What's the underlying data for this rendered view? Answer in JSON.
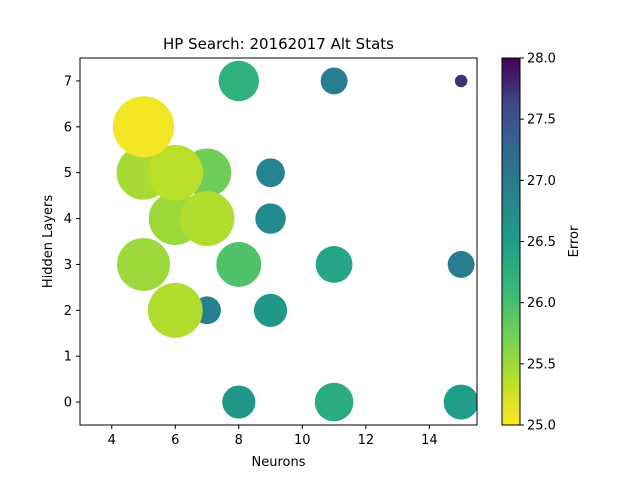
{
  "chart_data": {
    "type": "scatter",
    "title": "HP Search: 20162017 Alt Stats",
    "xlabel": "Neurons",
    "ylabel": "Hidden Layers",
    "xlim": [
      3,
      15.5
    ],
    "ylim": [
      -0.5,
      7.5
    ],
    "xticks": [
      "4",
      "6",
      "8",
      "10",
      "12",
      "14"
    ],
    "xtick_values": [
      4,
      6,
      8,
      10,
      12,
      14
    ],
    "yticks": [
      "0",
      "1",
      "2",
      "3",
      "4",
      "5",
      "6",
      "7"
    ],
    "ytick_values": [
      0,
      1,
      2,
      3,
      4,
      5,
      6,
      7
    ],
    "colorbar": {
      "label": "Error",
      "colormap": "viridis_r",
      "min": 25.0,
      "max": 28.0,
      "ticks": [
        "25.0",
        "25.5",
        "26.0",
        "26.5",
        "27.0",
        "27.5",
        "28.0"
      ],
      "tick_values": [
        25.0,
        25.5,
        26.0,
        26.5,
        27.0,
        27.5,
        28.0
      ]
    },
    "points": [
      {
        "x": 5,
        "y": 6,
        "error": 25.05
      },
      {
        "x": 5,
        "y": 5,
        "error": 25.45
      },
      {
        "x": 6,
        "y": 5,
        "error": 25.35
      },
      {
        "x": 7,
        "y": 5,
        "error": 25.75
      },
      {
        "x": 6,
        "y": 4,
        "error": 25.5
      },
      {
        "x": 7,
        "y": 4,
        "error": 25.4
      },
      {
        "x": 5,
        "y": 3,
        "error": 25.5
      },
      {
        "x": 6,
        "y": 2,
        "error": 25.4
      },
      {
        "x": 8,
        "y": 3,
        "error": 25.95
      },
      {
        "x": 8,
        "y": 7,
        "error": 26.2
      },
      {
        "x": 11,
        "y": 3,
        "error": 26.4
      },
      {
        "x": 11,
        "y": 0,
        "error": 26.3
      },
      {
        "x": 15,
        "y": 0,
        "error": 26.5
      },
      {
        "x": 8,
        "y": 0,
        "error": 26.6
      },
      {
        "x": 9,
        "y": 2,
        "error": 26.6
      },
      {
        "x": 9,
        "y": 4,
        "error": 26.75
      },
      {
        "x": 9,
        "y": 5,
        "error": 26.85
      },
      {
        "x": 7,
        "y": 2,
        "error": 26.9
      },
      {
        "x": 11,
        "y": 7,
        "error": 26.95
      },
      {
        "x": 15,
        "y": 3,
        "error": 26.95
      },
      {
        "x": 15,
        "y": 7,
        "error": 27.75
      }
    ]
  }
}
